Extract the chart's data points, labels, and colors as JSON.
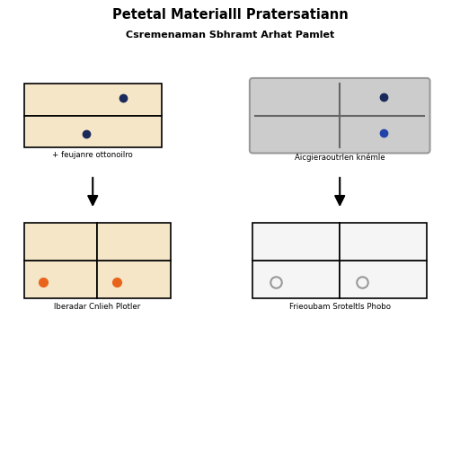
{
  "title": "Petetal Materialll Pratersatiann",
  "subtitle": "Csremenaman Sbhramt Arhat Pamlet",
  "left_top_label": "+ feujanre ottonoilro",
  "right_top_label": "Aicgieraoutrlen knémle",
  "left_bottom_label": "lberadar Cnlieh Plotler",
  "right_bottom_label": "Frieoubam Sroteltls Phobo",
  "bg_color": "#ffffff",
  "left_plate_color": "#f5e6c8",
  "right_plate_color": "#cccccc",
  "left_bottom_plate_color": "#f5e6c8",
  "right_bottom_plate_color": "#f5f5f5",
  "dot_color_left_top": "#1a2a5a",
  "dot_color_right_top_upper": "#1a2a5a",
  "dot_color_right_top_lower": "#2244aa",
  "dot_color_left_bottom": "#e8641a",
  "dot_color_right_bottom": "#999999"
}
